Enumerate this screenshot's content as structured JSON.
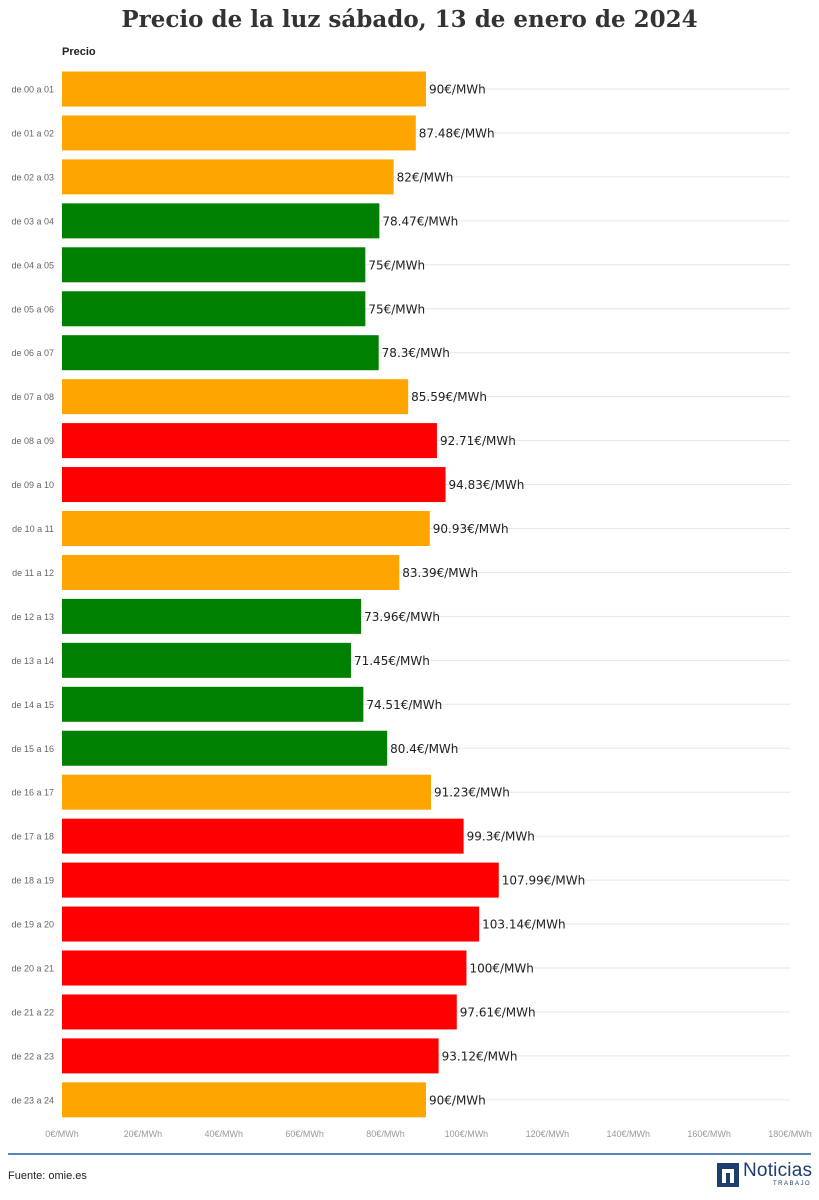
{
  "chart_data": {
    "type": "bar",
    "orientation": "horizontal",
    "title": "Precio de la luz sábado, 13 de enero de 2024",
    "column_label": "Precio",
    "categories": [
      "de 00 a 01",
      "de 01 a 02",
      "de 02 a 03",
      "de 03 a 04",
      "de 04 a 05",
      "de 05 a 06",
      "de 06 a 07",
      "de 07 a 08",
      "de 08 a 09",
      "de 09 a 10",
      "de 10 a 11",
      "de 11 a 12",
      "de 12 a 13",
      "de 13 a 14",
      "de 14 a 15",
      "de 15 a 16",
      "de 16 a 17",
      "de 17 a 18",
      "de 18 a 19",
      "de 19 a 20",
      "de 20 a 21",
      "de 21 a 22",
      "de 22 a 23",
      "de 23 a 24"
    ],
    "values": [
      90,
      87.48,
      82,
      78.47,
      75,
      75,
      78.3,
      85.59,
      92.71,
      94.83,
      90.93,
      83.39,
      73.96,
      71.45,
      74.51,
      80.4,
      91.23,
      99.3,
      107.99,
      103.14,
      100,
      97.61,
      93.12,
      90
    ],
    "value_labels": [
      "90€/MWh",
      "87.48€/MWh",
      "82€/MWh",
      "78.47€/MWh",
      "75€/MWh",
      "75€/MWh",
      "78.3€/MWh",
      "85.59€/MWh",
      "92.71€/MWh",
      "94.83€/MWh",
      "90.93€/MWh",
      "83.39€/MWh",
      "73.96€/MWh",
      "71.45€/MWh",
      "74.51€/MWh",
      "80.4€/MWh",
      "91.23€/MWh",
      "99.3€/MWh",
      "107.99€/MWh",
      "103.14€/MWh",
      "100€/MWh",
      "97.61€/MWh",
      "93.12€/MWh",
      "90€/MWh"
    ],
    "levels": [
      "medio",
      "medio",
      "medio",
      "bajo",
      "bajo",
      "bajo",
      "bajo",
      "medio",
      "alto",
      "alto",
      "medio",
      "medio",
      "bajo",
      "bajo",
      "bajo",
      "bajo",
      "medio",
      "alto",
      "alto",
      "alto",
      "alto",
      "alto",
      "alto",
      "medio"
    ],
    "level_colors": {
      "bajo": "#008000",
      "medio": "#ffa500",
      "alto": "#ff0000"
    },
    "xlim": [
      0,
      180
    ],
    "x_ticks": [
      0,
      20,
      40,
      60,
      80,
      100,
      120,
      140,
      160,
      180
    ],
    "x_tick_labels": [
      "0€/MWh",
      "20€/MWh",
      "40€/MWh",
      "60€/MWh",
      "80€/MWh",
      "100€/MWh",
      "120€/MWh",
      "140€/MWh",
      "160€/MWh",
      "180€/MWh"
    ],
    "grid": true,
    "xlabel": "",
    "ylabel": ""
  },
  "footer": {
    "source": "Fuente: omie.es",
    "logo_text": "Noticias",
    "logo_subtext": "TRABAJO"
  }
}
